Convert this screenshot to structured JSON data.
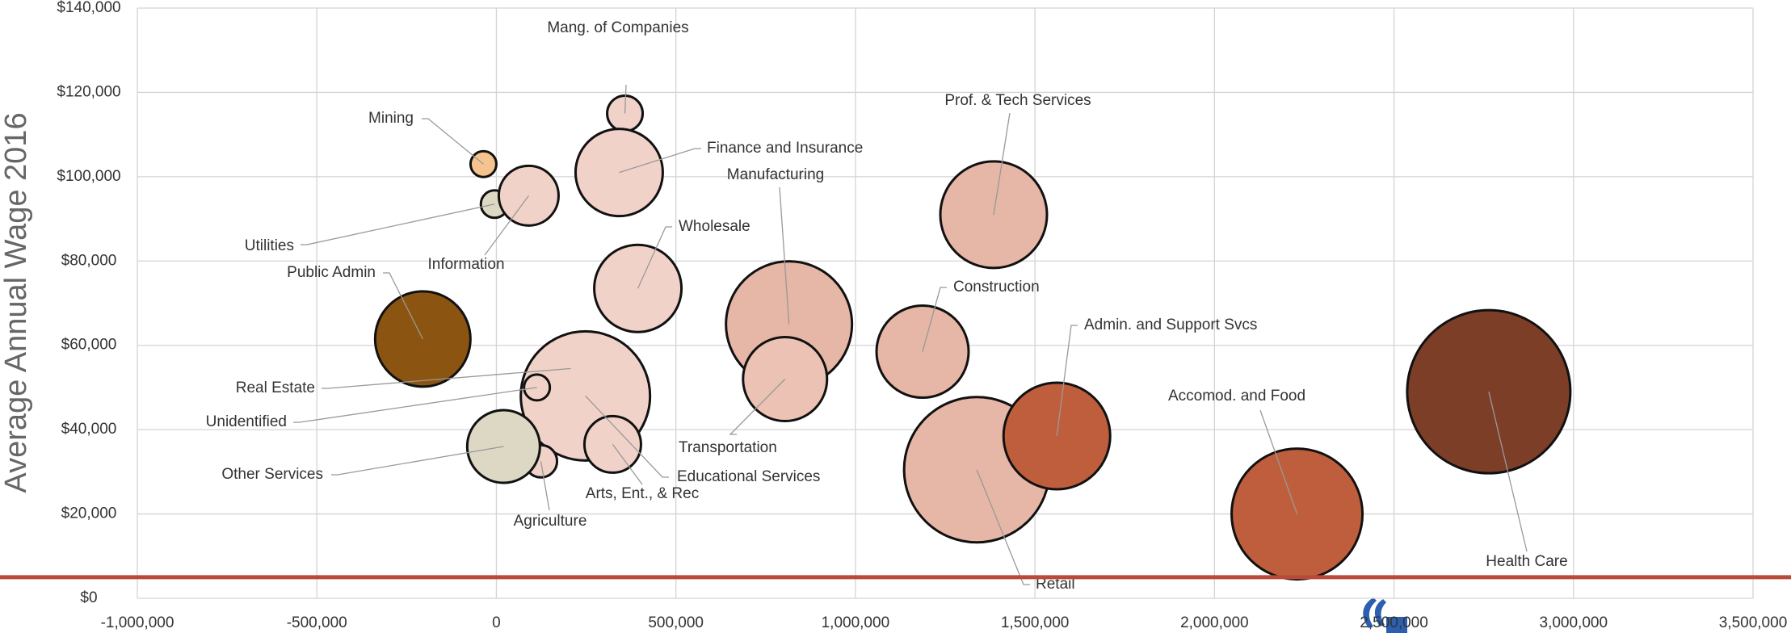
{
  "chart_data": {
    "type": "bubble",
    "y_label": "Average Annual Wage 2016",
    "categories": [
      "Mining",
      "Mang. of Companies",
      "Finance and Insurance",
      "Utilities",
      "Information",
      "Wholesale",
      "Public Admin",
      "Manufacturing",
      "Real Estate",
      "Educational Services",
      "Unidentified",
      "Agriculture",
      "Other Services",
      "Arts, Ent., & Rec",
      "Transportation",
      "Prof. & Tech Services",
      "Construction",
      "Retail",
      "Admin. and Support Svcs",
      "Accomod. and Food",
      "Health Care"
    ],
    "x": [
      -36000,
      358000,
      342000,
      -5000,
      90000,
      394000,
      -205000,
      815000,
      207000,
      248000,
      113000,
      124000,
      20000,
      324000,
      804000,
      1385000,
      1187000,
      1338000,
      1561000,
      2230000,
      2764000
    ],
    "values": [
      103000,
      115000,
      101000,
      93500,
      95500,
      73500,
      61500,
      65000,
      54500,
      48000,
      50000,
      32500,
      36000,
      36500,
      52000,
      91000,
      58500,
      30500,
      38500,
      20000,
      49000
    ],
    "sizes": [
      256,
      484,
      2916,
      289,
      1369,
      2916,
      3481,
      6084,
      400,
      6400,
      256,
      400,
      2025,
      1225,
      2704,
      4356,
      3249,
      8100,
      4356,
      6561,
      10201
    ],
    "colors": [
      "#f5c48e",
      "#f0d2c8",
      "#f0d2c8",
      "#ddd8c4",
      "#f0d2c8",
      "#f0d2c8",
      "#8b5511",
      "#e6b6a6",
      "#f0d2c8",
      "#f0d2c8",
      "#f0d2c8",
      "#f0d2c8",
      "#ddd8c4",
      "#f0d2c8",
      "#ebc2b4",
      "#e6b6a6",
      "#e6b6a6",
      "#e6b6a6",
      "#bf5e3c",
      "#bf5e3c",
      "#7d3e28"
    ],
    "xlim": [
      -1000000,
      3500000
    ],
    "xticks": [
      {
        "value": -1000000,
        "label": "-1,000,000"
      },
      {
        "value": -500000,
        "label": "-500,000"
      },
      0,
      {
        "value": 500000,
        "label": "500,000"
      },
      {
        "value": 1000000,
        "label": "1,000,000"
      },
      {
        "value": 1500000,
        "label": "1,500,000"
      },
      {
        "value": 2000000,
        "label": "2,000,000"
      },
      {
        "value": 2500000,
        "label": "2,500,000"
      },
      {
        "value": 3000000,
        "label": "3,000,000"
      },
      {
        "value": 3500000,
        "label": "3,500,000"
      }
    ],
    "ylim": [
      0,
      140000
    ],
    "yticks": [
      {
        "value": 0,
        "label": "$0"
      },
      {
        "value": 20000,
        "label": "$20,000"
      },
      {
        "value": 40000,
        "label": "$40,000"
      },
      {
        "value": 60000,
        "label": "$60,000"
      },
      {
        "value": 80000,
        "label": "$80,000"
      },
      {
        "value": 100000,
        "label": "$100,000"
      },
      {
        "value": 120000,
        "label": "$120,000"
      },
      {
        "value": 140000,
        "label": "$140,000"
      }
    ],
    "grid": true,
    "reference_line": {
      "value": 5000,
      "color": "#b94a3a"
    }
  }
}
